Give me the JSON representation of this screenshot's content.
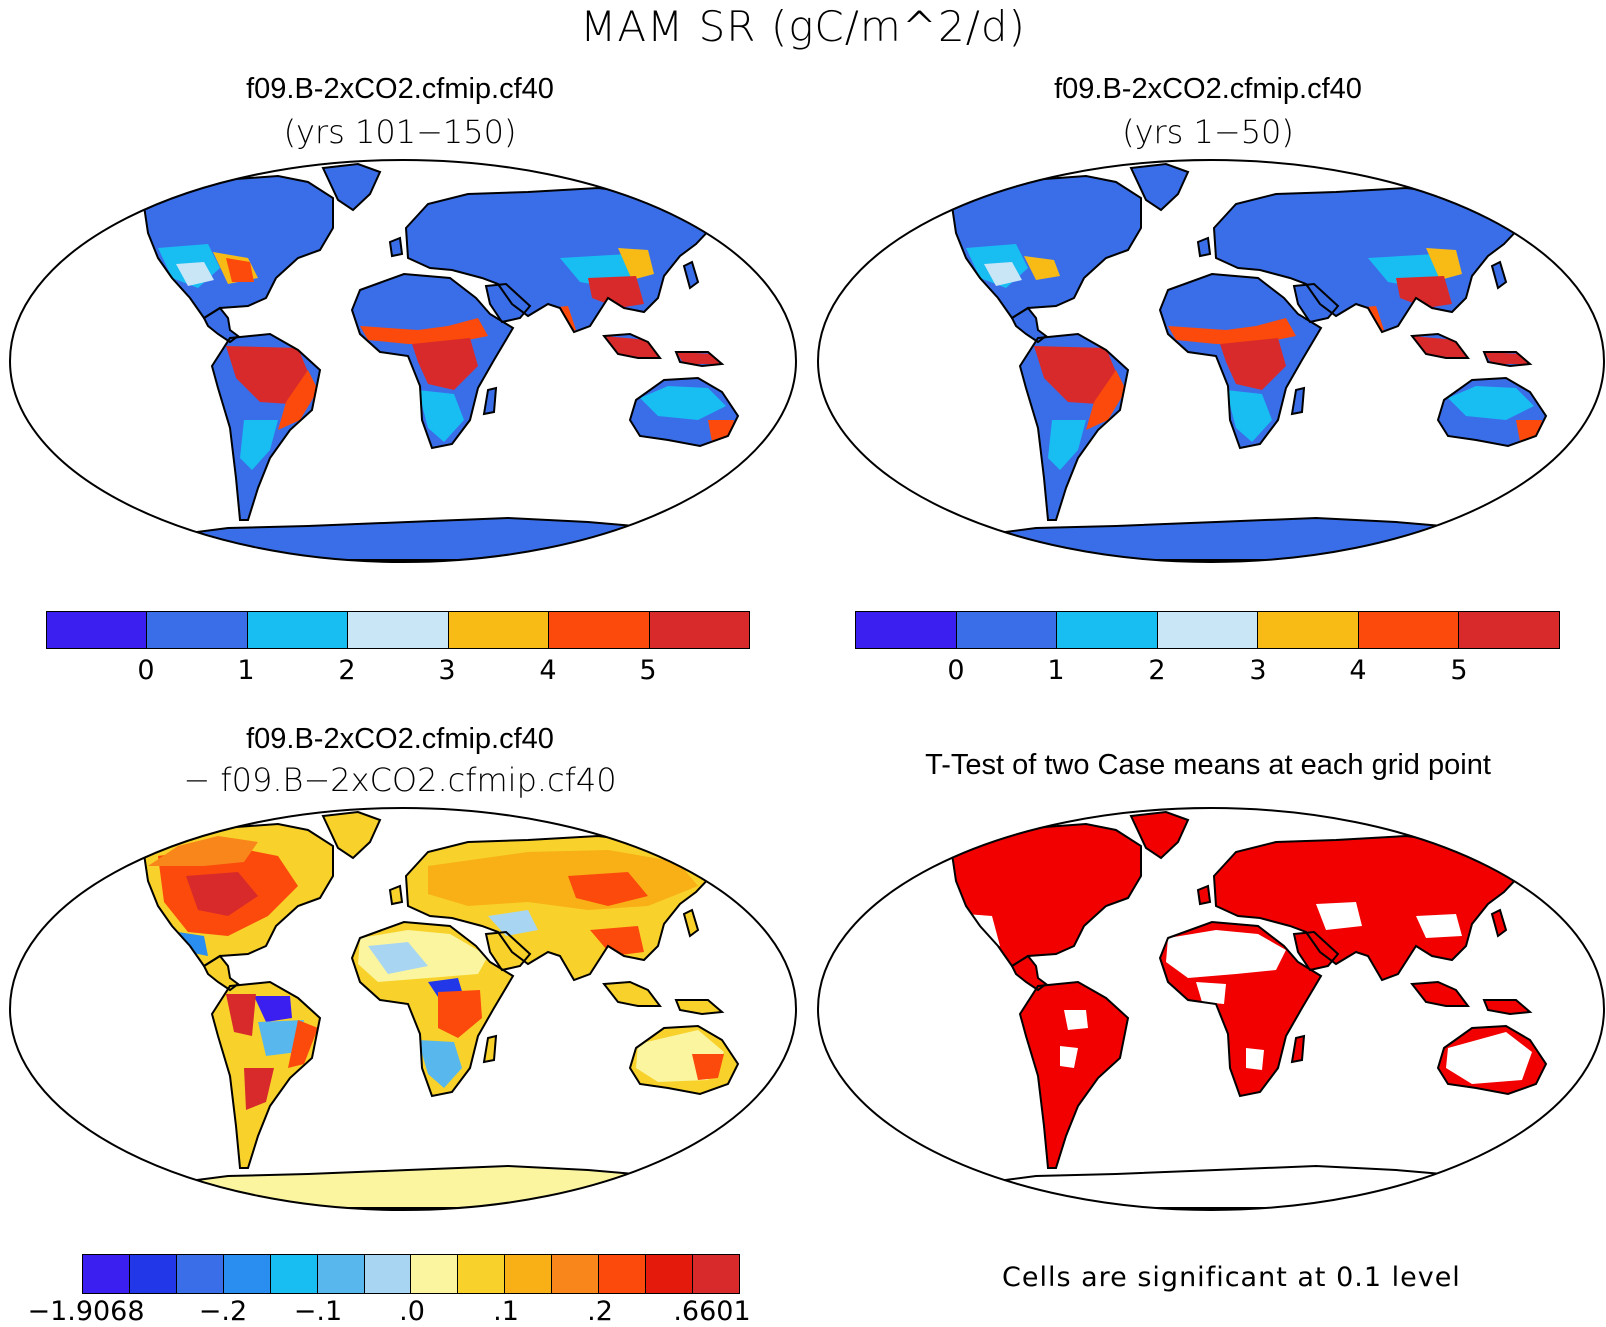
{
  "figure": {
    "title": "MAM SR (gC/m^2/d)"
  },
  "panels": [
    {
      "id": "top-left",
      "title": "f09.B-2xCO2.cfmip.cf40",
      "subtitle": "(yrs 101−150)",
      "palette": [
        "#3a1ff0",
        "#3a6ee8",
        "#18bdf2",
        "#c8e6f6",
        "#f8bb16",
        "#fb4a0c",
        "#d82a2a"
      ],
      "tick_labels": [
        "0",
        "1",
        "2",
        "3",
        "4",
        "5"
      ]
    },
    {
      "id": "top-right",
      "title": "f09.B-2xCO2.cfmip.cf40",
      "subtitle": "(yrs 1−50)",
      "palette": [
        "#3a1ff0",
        "#3a6ee8",
        "#18bdf2",
        "#c8e6f6",
        "#f8bb16",
        "#fb4a0c",
        "#d82a2a"
      ],
      "tick_labels": [
        "0",
        "1",
        "2",
        "3",
        "4",
        "5"
      ]
    },
    {
      "id": "bottom-left",
      "title": "f09.B-2xCO2.cfmip.cf40",
      "subtitle": "− f09.B−2xCO2.cfmip.cf40",
      "palette": [
        "#3a1ff0",
        "#2238e8",
        "#3a6ee8",
        "#2a8ef0",
        "#18bdf2",
        "#58b7ec",
        "#a8d6f2",
        "#fbf5a0",
        "#f8d22a",
        "#f8b016",
        "#f8861a",
        "#fb4a0c",
        "#e41a0c",
        "#d82a2a"
      ],
      "tick_labels": [
        "−1.9068",
        "−.2",
        "−.1",
        ".0",
        ".1",
        ".2",
        ".6601"
      ]
    },
    {
      "id": "bottom-right",
      "title": "T-Test of two Case means at each grid point",
      "footnote": "Cells are significant at 0.1 level",
      "palette": [
        "#f20000"
      ]
    }
  ]
}
